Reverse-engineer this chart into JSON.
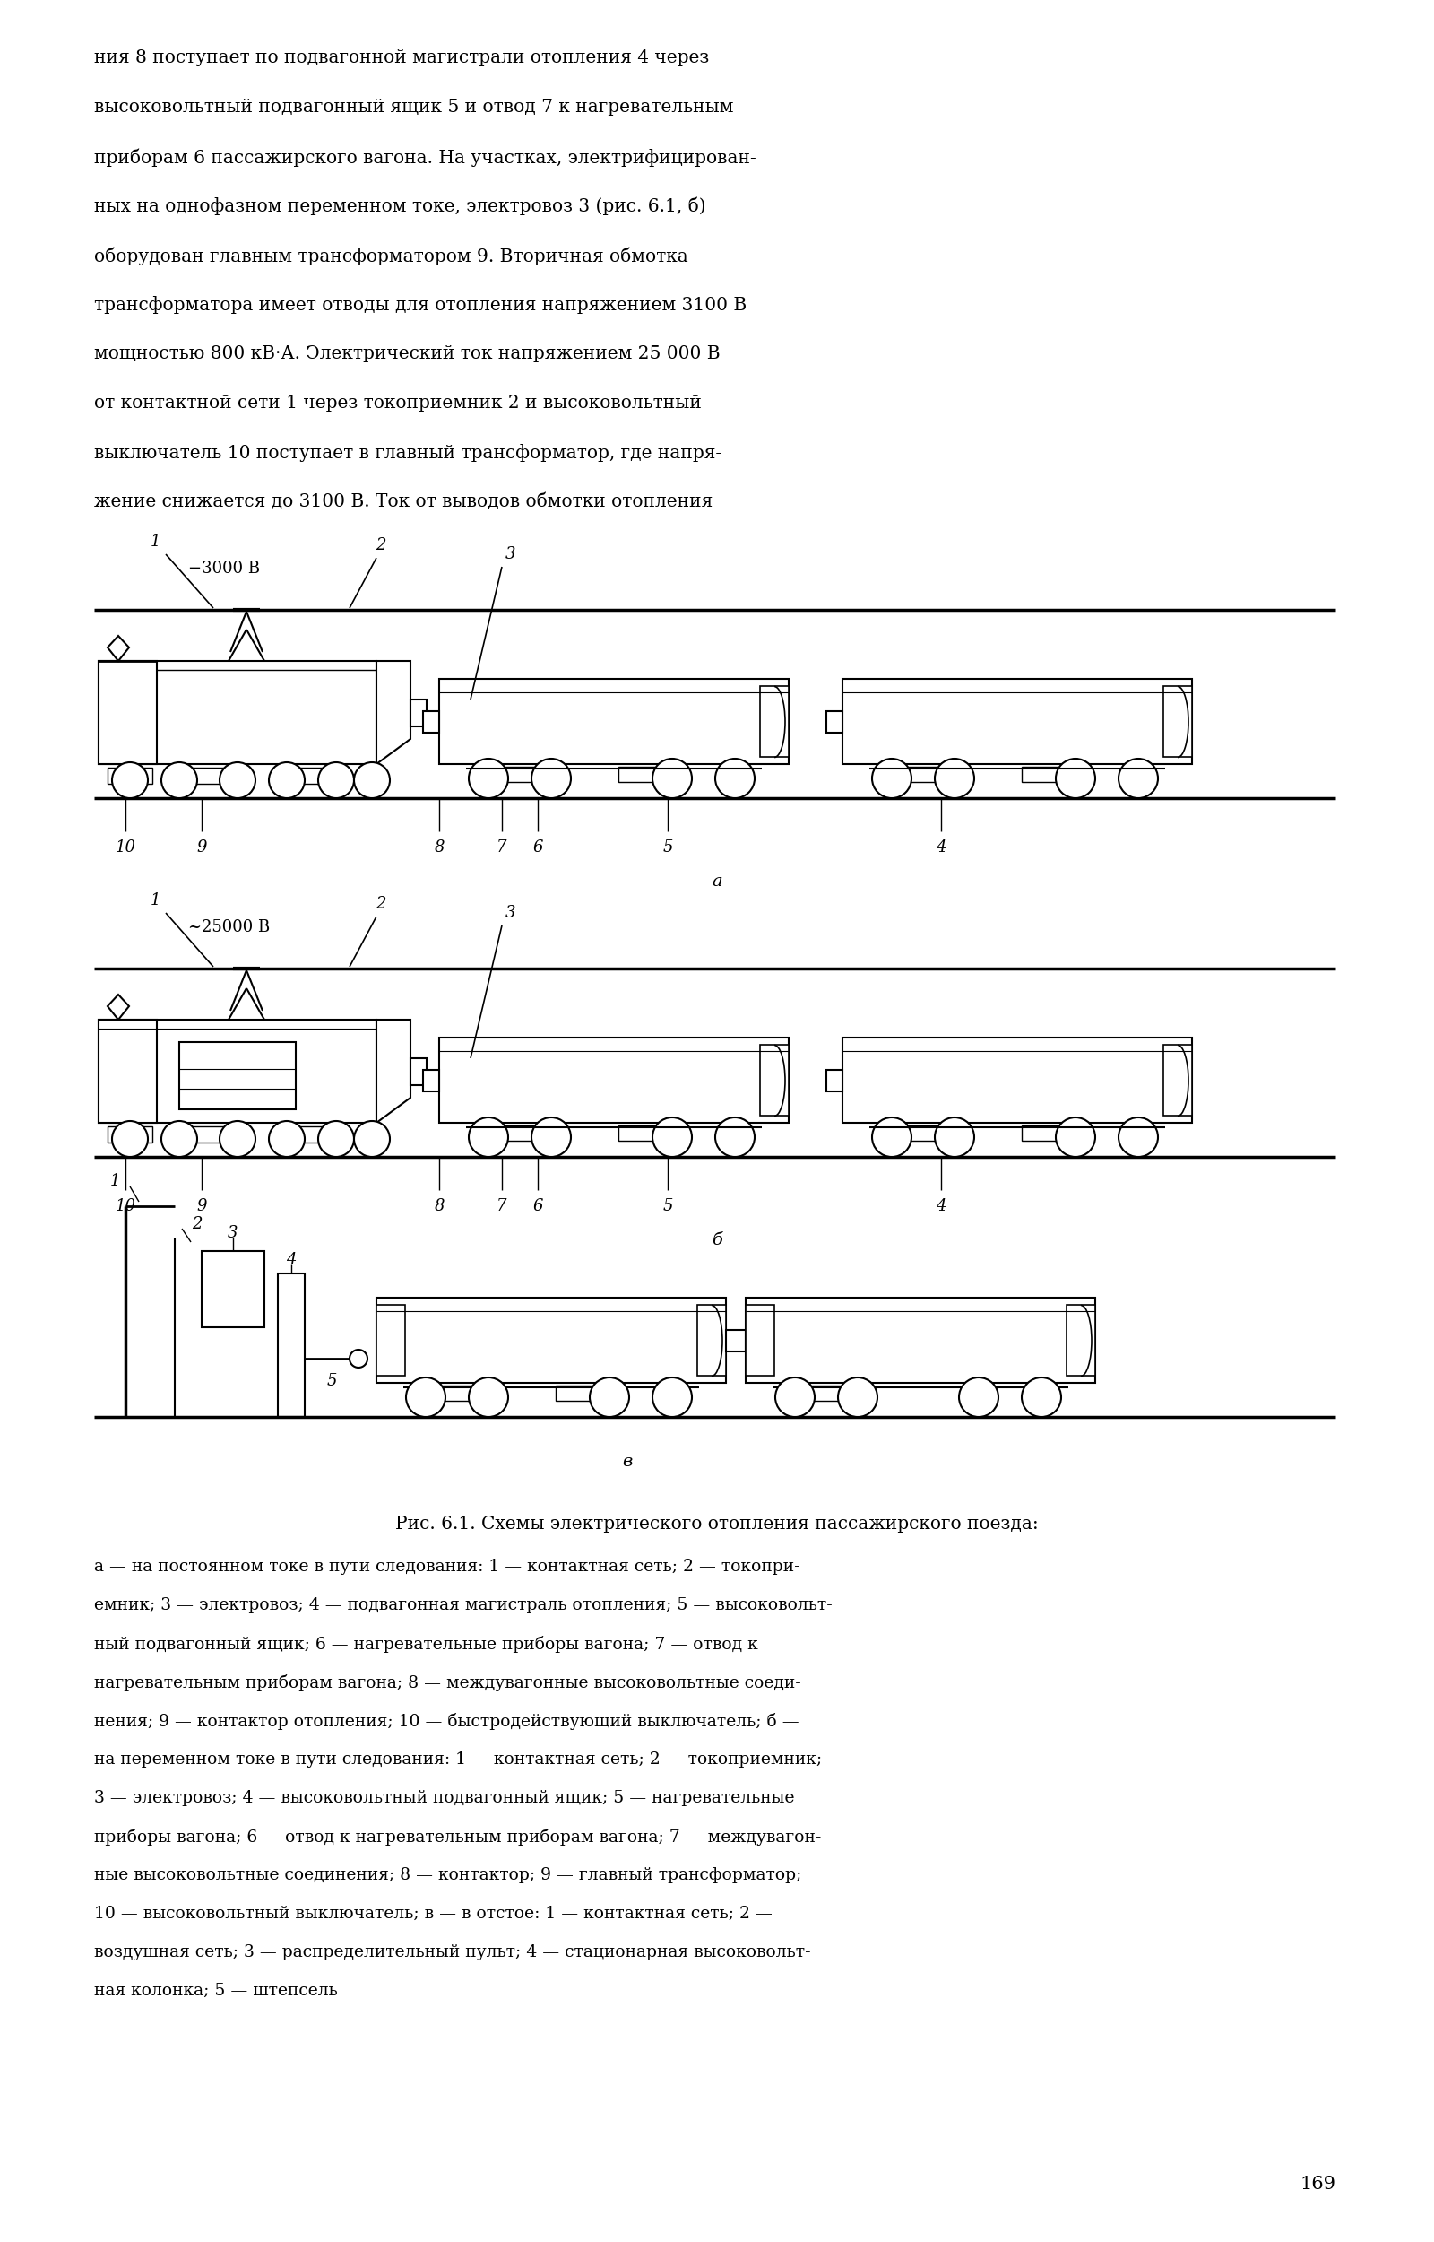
{
  "page_text_top": "ния 8 поступает по подвагонной магистрали отопления 4 через\nвысоковольтный подвагонный ящик 5 и отвод 7 к нагревательным\nприборам 6 пассажирского вагона. На участках, электрифицирован-\nных на однофазном переменном токе, электровоз 3 (рис. 6.1, б)\nоборудован главным трансформатором 9. Вторичная обмотка\nтрансформатора имеет отводы для отопления напряжением 3100 В\nмощностью 800 кВ·А. Электрический ток напряжением 25 000 В\nот контактной сети 1 через токоприемник 2 и высоковольтный\nвыключатель 10 поступает в главный трансформатор, где напря-\nжение снижается до 3100 В. Ток от выводов обмотки отопления",
  "voltage_a": "−3000 В",
  "voltage_b": "~25000 В",
  "fig_caption_title": "Рис. 6.1. Схемы электрического отопления пассажирского поезда:",
  "fig_caption_body": "а — на постоянном токе в пути следования: 1 — контактная сеть; 2 — токопри-\nемник; 3 — электровоз; 4 — подвагонная магистраль отопления; 5 — высоковольт-\nный подвагонный ящик; 6 — нагревательные приборы вагона; 7 — отвод к\nнагревательным приборам вагона; 8 — междувагонные высоковольтные соеди-\nнения; 9 — контактор отопления; 10 — быстродействующий выключатель; б —\nна переменном токе в пути следования: 1 — контактная сеть; 2 — токоприемник;\n3 — электровоз; 4 — высоковольтный подвагонный ящик; 5 — нагревательные\nприборы вагона; 6 — отвод к нагревательным приборам вагона; 7 — междувагон-\nные высоковольтные соединения; 8 — контактор; 9 — главный трансформатор;\n10 — высоковольтный выключатель; в — в отстое: 1 — контактная сеть; 2 —\nвоздушная сеть; 3 — распределительный пульт; 4 — стационарная высоковольт-\nная колонка; 5 — штепсель",
  "page_number": "169",
  "bg_color": "#ffffff"
}
